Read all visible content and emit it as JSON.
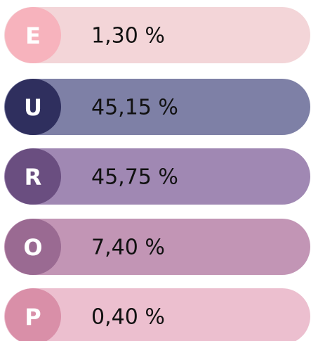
{
  "items": [
    {
      "letter": "E",
      "value": "1,30 %"
    },
    {
      "letter": "U",
      "value": "45,15 %"
    },
    {
      "letter": "R",
      "value": "45,75 %"
    },
    {
      "letter": "O",
      "value": "7,40 %"
    },
    {
      "letter": "P",
      "value": "0,40 %"
    }
  ]
}
